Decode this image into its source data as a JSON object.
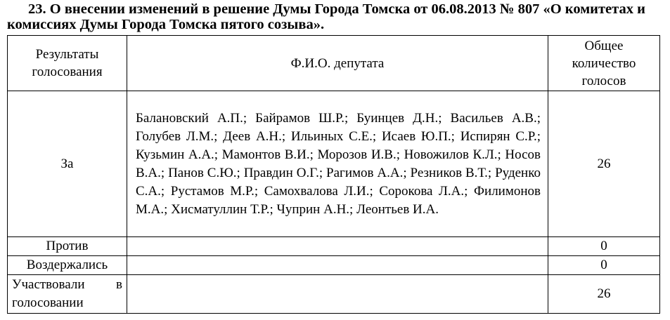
{
  "title": "23. О внесении изменений в решение Думы Города Томска от 06.08.2013 № 807 «О комитетах и комиссиях Думы Города Томска пятого созыва».",
  "table": {
    "headers": [
      "Результаты голосования",
      "Ф.И.О. депутата",
      "Общее количество голосов"
    ],
    "rows": [
      {
        "result": "За",
        "deputies": "Балановский А.П.; Байрамов Ш.Р.; Буинцев Д.Н.; Васильев А.В.; Голубев Л.М.; Деев А.Н.; Ильиных С.Е.; Исаев Ю.П.; Испирян С.Р.; Кузьмин А.А.; Мамонтов В.И.; Морозов И.В.; Новожилов К.Л.; Носов В.А.; Панов С.Ю.; Правдин О.Г.; Рагимов А.А.; Резников В.Т.; Руденко С.А.; Рустамов М.Р.; Самохвалова Л.И.; Сорокова Л.А.; Филимонов М.А.; Хисматуллин Т.Р.; Чуприн А.Н.; Леонтьев И.А.",
        "count": "26"
      },
      {
        "result": "Против",
        "deputies": "",
        "count": "0"
      },
      {
        "result": "Воздержались",
        "deputies": "",
        "count": "0"
      },
      {
        "result": "Участвовали в голосовании",
        "deputies": "",
        "count": "26"
      }
    ]
  }
}
